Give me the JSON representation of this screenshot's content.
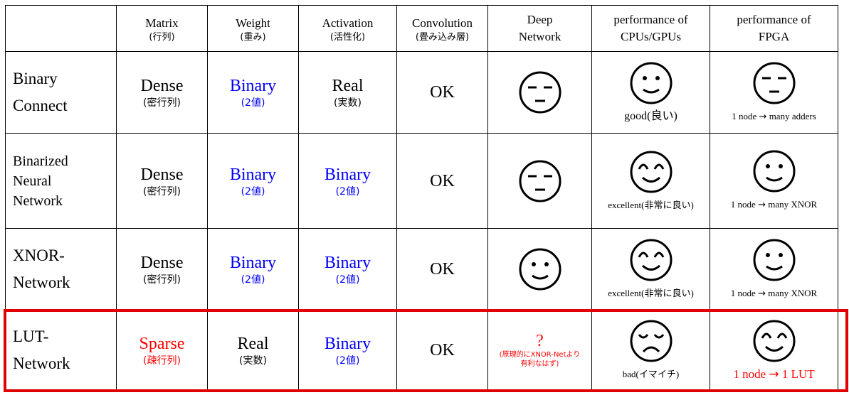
{
  "header": {
    "matrix": {
      "main": "Matrix",
      "sub": "(行列)"
    },
    "weight": {
      "main": "Weight",
      "sub": "(重み)"
    },
    "activation": {
      "main": "Activation",
      "sub": "(活性化)"
    },
    "convolution": {
      "main": "Convolution",
      "sub": "(畳み込み層)"
    },
    "deep": {
      "main1": "Deep",
      "main2": "Network"
    },
    "cpu": {
      "main1": "performance of",
      "main2": "CPUs/GPUs"
    },
    "fpga": {
      "main1": "performance of",
      "main2": "FPGA"
    }
  },
  "rows": [
    {
      "name_lines": [
        "Binary",
        "Connect"
      ],
      "matrix": {
        "main": "Dense",
        "sub": "(密行列)"
      },
      "weight": {
        "main": "Binary",
        "sub": "(2値)"
      },
      "activation": {
        "main": "Real",
        "sub": "(実数)"
      },
      "convolution": "OK",
      "deep": {
        "face": "neutral-face-icon"
      },
      "cpu": {
        "face": "smile-face-icon",
        "caption": "good(良い)"
      },
      "fpga": {
        "face": "neutral-face-icon",
        "caption_pre": "1 node",
        "caption_post": "many adders"
      }
    },
    {
      "name_lines": [
        "Binarized",
        "Neural",
        "Network"
      ],
      "matrix": {
        "main": "Dense",
        "sub": "(密行列)"
      },
      "weight": {
        "main": "Binary",
        "sub": "(2値)"
      },
      "activation": {
        "main": "Binary",
        "sub": "(2値)"
      },
      "convolution": "OK",
      "deep": {
        "face": "neutral-face-icon"
      },
      "cpu": {
        "face": "happy-face-icon",
        "caption": "excellent(非常に良い)"
      },
      "fpga": {
        "face": "smile-face-icon",
        "caption_pre": "1 node",
        "caption_post": "many XNOR"
      }
    },
    {
      "name_lines": [
        "XNOR-",
        "Network"
      ],
      "matrix": {
        "main": "Dense",
        "sub": "(密行列)"
      },
      "weight": {
        "main": "Binary",
        "sub": "(2値)"
      },
      "activation": {
        "main": "Binary",
        "sub": "(2値)"
      },
      "convolution": "OK",
      "deep": {
        "face": "smile-face-icon"
      },
      "cpu": {
        "face": "happy-face-icon",
        "caption": "excellent(非常に良い)"
      },
      "fpga": {
        "face": "smile-face-icon",
        "caption_pre": "1 node",
        "caption_post": "many XNOR"
      }
    },
    {
      "name_lines": [
        "LUT-",
        "Network"
      ],
      "matrix": {
        "main": "Sparse",
        "sub": "(疎行列)"
      },
      "weight": {
        "main": "Real",
        "sub": "(実数)"
      },
      "activation": {
        "main": "Binary",
        "sub": "(2値)"
      },
      "convolution": "OK",
      "deep": {
        "mark": "?",
        "note_lines": [
          "(原理的にXNOR-Netより",
          "有利なはず)"
        ]
      },
      "cpu": {
        "face": "sad-face-icon",
        "caption": "bad(イマイチ)"
      },
      "fpga": {
        "face": "happy-face-icon",
        "caption_pre": "1 node",
        "caption_post": "1 LUT"
      }
    }
  ],
  "arrow": "→",
  "colors": {
    "blue": "#0000ff",
    "red": "#ff0000",
    "highlight": "#e00000"
  }
}
